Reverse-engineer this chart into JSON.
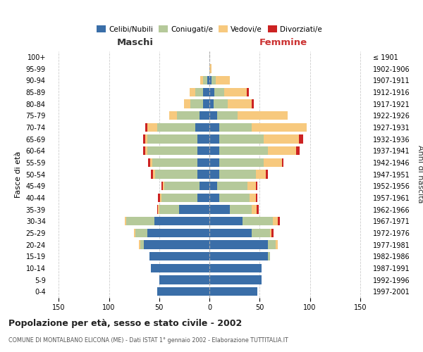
{
  "age_groups": [
    "0-4",
    "5-9",
    "10-14",
    "15-19",
    "20-24",
    "25-29",
    "30-34",
    "35-39",
    "40-44",
    "45-49",
    "50-54",
    "55-59",
    "60-64",
    "65-69",
    "70-74",
    "75-79",
    "80-84",
    "85-89",
    "90-94",
    "95-99",
    "100+"
  ],
  "birth_years": [
    "1997-2001",
    "1992-1996",
    "1987-1991",
    "1982-1986",
    "1977-1981",
    "1972-1976",
    "1967-1971",
    "1962-1966",
    "1957-1961",
    "1952-1956",
    "1947-1951",
    "1942-1946",
    "1937-1941",
    "1932-1936",
    "1927-1931",
    "1922-1926",
    "1917-1921",
    "1912-1916",
    "1907-1911",
    "1902-1906",
    "≤ 1901"
  ],
  "maschi": {
    "celibi": [
      52,
      50,
      58,
      60,
      65,
      62,
      55,
      30,
      12,
      10,
      12,
      12,
      12,
      12,
      14,
      10,
      6,
      6,
      2,
      0,
      0
    ],
    "coniugati": [
      0,
      0,
      0,
      0,
      4,
      12,
      28,
      20,
      36,
      35,
      42,
      45,
      50,
      50,
      38,
      22,
      13,
      8,
      4,
      0,
      0
    ],
    "vedovi": [
      0,
      0,
      0,
      0,
      1,
      1,
      1,
      1,
      1,
      1,
      2,
      2,
      2,
      2,
      10,
      8,
      6,
      6,
      3,
      0,
      0
    ],
    "divorziati": [
      0,
      0,
      0,
      0,
      0,
      0,
      0,
      1,
      2,
      2,
      2,
      2,
      2,
      2,
      2,
      0,
      0,
      0,
      0,
      0,
      0
    ]
  },
  "femmine": {
    "nubili": [
      48,
      52,
      52,
      58,
      58,
      42,
      33,
      20,
      10,
      8,
      10,
      10,
      10,
      10,
      10,
      8,
      4,
      5,
      2,
      0,
      0
    ],
    "coniugate": [
      0,
      0,
      0,
      2,
      8,
      18,
      30,
      22,
      30,
      30,
      36,
      44,
      48,
      44,
      32,
      20,
      14,
      10,
      4,
      0,
      0
    ],
    "vedove": [
      0,
      0,
      0,
      0,
      2,
      2,
      5,
      5,
      6,
      8,
      10,
      18,
      28,
      35,
      55,
      50,
      24,
      22,
      14,
      2,
      0
    ],
    "divorziate": [
      0,
      0,
      0,
      0,
      0,
      2,
      2,
      2,
      2,
      2,
      2,
      2,
      4,
      4,
      0,
      0,
      2,
      2,
      0,
      0,
      0
    ]
  },
  "colors": {
    "celibi": "#3a6ea8",
    "coniugati": "#b5c99a",
    "vedovi": "#f7c97e",
    "divorziati": "#cc2222"
  },
  "title": "Popolazione per età, sesso e stato civile - 2002",
  "subtitle": "COMUNE DI MONTALBANO ELICONA (ME) - Dati ISTAT 1° gennaio 2002 - Elaborazione TUTTITALIA.IT",
  "xlabel_left": "Maschi",
  "xlabel_right": "Femmine",
  "ylabel_left": "Fasce di età",
  "ylabel_right": "Anni di nascita",
  "xlim": 160,
  "xticks": [
    -150,
    -100,
    -50,
    0,
    50,
    100,
    150
  ],
  "legend_labels": [
    "Celibi/Nubili",
    "Coniugati/e",
    "Vedovi/e",
    "Divorziati/e"
  ],
  "bg_color": "#ffffff",
  "grid_color": "#cccccc"
}
